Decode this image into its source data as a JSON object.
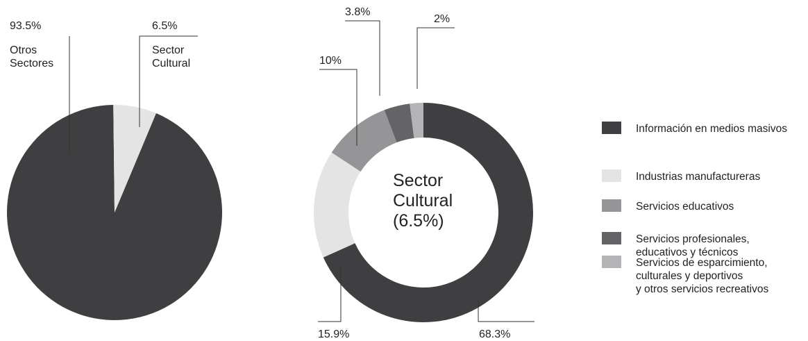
{
  "chart_data": [
    {
      "type": "pie",
      "slices": [
        {
          "name": "Otros Sectores",
          "label_lines": [
            "Otros",
            "Sectores"
          ],
          "value": 93.5,
          "pct_label": "93.5%",
          "color": "#3f3f41"
        },
        {
          "name": "Sector Cultural",
          "label_lines": [
            "Sector",
            "Cultural"
          ],
          "value": 6.5,
          "pct_label": "6.5%",
          "color": "#e4e4e5"
        }
      ]
    },
    {
      "type": "donut",
      "center_lines": [
        "Sector",
        "Cultural",
        "(6.5%)"
      ],
      "slices": [
        {
          "name": "Información en medios masivos",
          "value": 68.3,
          "pct_label": "68.3%",
          "color": "#3f3f41"
        },
        {
          "name": "Industrias manufactureras",
          "value": 15.9,
          "pct_label": "15.9%",
          "color": "#e4e4e5"
        },
        {
          "name": "Servicios educativos",
          "value": 10,
          "pct_label": "10%",
          "color": "#959597"
        },
        {
          "name": "Servicios profesionales, educativos y técnicos",
          "value": 3.8,
          "pct_label": "3.8%",
          "color": "#646466"
        },
        {
          "name": "Servicios de esparcimiento, culturales y deportivos y otros servicios recreativos",
          "value": 2,
          "pct_label": "2%",
          "color": "#b4b4b6"
        }
      ],
      "legend": {
        "placement": "right",
        "items": [
          {
            "lines": [
              "Información en medios masivos"
            ],
            "color": "#3f3f41"
          },
          {
            "lines": [
              "Industrias manufactureras"
            ],
            "color": "#e4e4e5"
          },
          {
            "lines": [
              "Servicios educativos"
            ],
            "color": "#959597"
          },
          {
            "lines": [
              "Servicios profesionales,",
              "educativos y técnicos"
            ],
            "color": "#646466"
          },
          {
            "lines": [
              "Servicios de esparcimiento,",
              "culturales y deportivos",
              "y otros servicios recreativos"
            ],
            "color": "#b4b4b6"
          }
        ]
      }
    }
  ]
}
